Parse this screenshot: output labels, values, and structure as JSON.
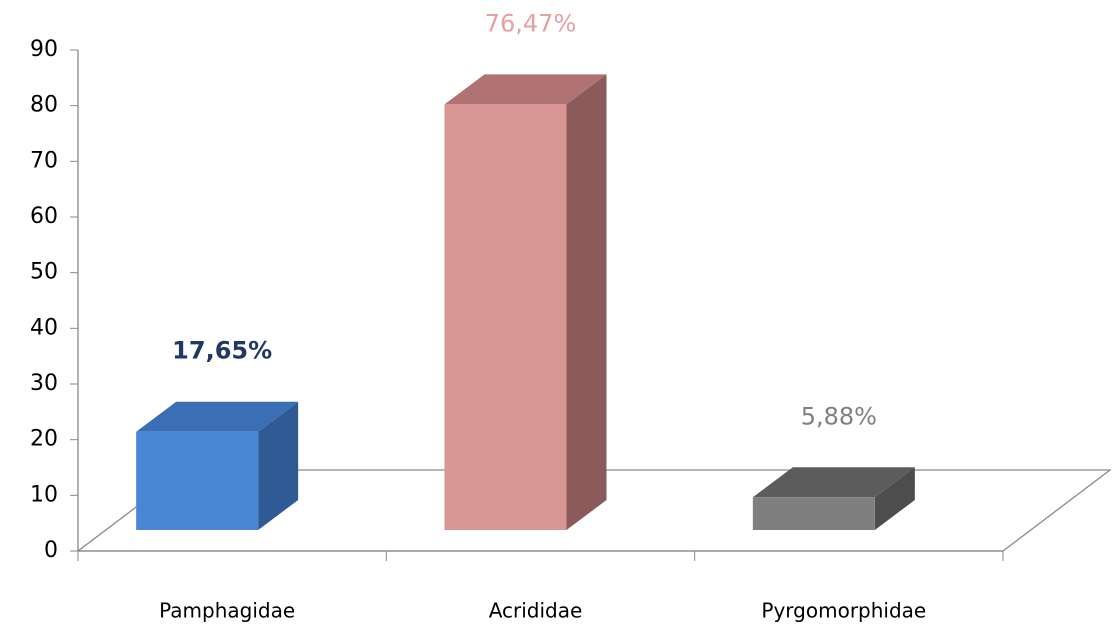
{
  "chart_data": {
    "type": "bar3d",
    "categories": [
      "Pamphagidae",
      "Acrididae",
      "Pyrgomorphidae"
    ],
    "values": [
      17.65,
      76.47,
      5.88
    ],
    "value_labels": [
      "17,65%",
      "76,47%",
      "5,88%"
    ],
    "colors": [
      "#4a86d4",
      "#d99694",
      "#7f7f7f"
    ],
    "side_colors": [
      "#2f5a93",
      "#8b5a5a",
      "#4d4d4d"
    ],
    "top_colors": [
      "#3a6fb5",
      "#b07272",
      "#5c5c5c"
    ],
    "label_colors": [
      "#1f3864",
      "#e6a0a0",
      "#808080"
    ],
    "ylim": [
      0,
      90
    ],
    "yticks": [
      0,
      10,
      20,
      30,
      40,
      50,
      60,
      70,
      80,
      90
    ],
    "grid": false
  }
}
